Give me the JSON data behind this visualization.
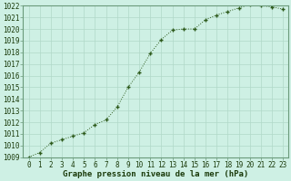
{
  "x": [
    0,
    1,
    2,
    3,
    4,
    5,
    6,
    7,
    8,
    9,
    10,
    11,
    12,
    13,
    14,
    15,
    16,
    17,
    18,
    19,
    20,
    21,
    22,
    23
  ],
  "y": [
    1009.0,
    1009.4,
    1010.2,
    1010.5,
    1010.8,
    1011.1,
    1011.8,
    1012.2,
    1013.3,
    1015.0,
    1016.3,
    1017.9,
    1019.1,
    1019.9,
    1020.0,
    1020.0,
    1020.8,
    1021.2,
    1021.5,
    1021.8,
    1022.1,
    1022.0,
    1021.9,
    1021.7
  ],
  "ylim": [
    1009,
    1022
  ],
  "yticks": [
    1009,
    1010,
    1011,
    1012,
    1013,
    1014,
    1015,
    1016,
    1017,
    1018,
    1019,
    1020,
    1021,
    1022
  ],
  "xlabel": "Graphe pression niveau de la mer (hPa)",
  "line_color": "#2d5a1b",
  "marker_color": "#2d5a1b",
  "bg_color": "#cef0e4",
  "grid_color": "#b0d8c8",
  "tick_color": "#1a3a0a",
  "tick_fontsize": 5.5,
  "label_fontsize": 6.5
}
